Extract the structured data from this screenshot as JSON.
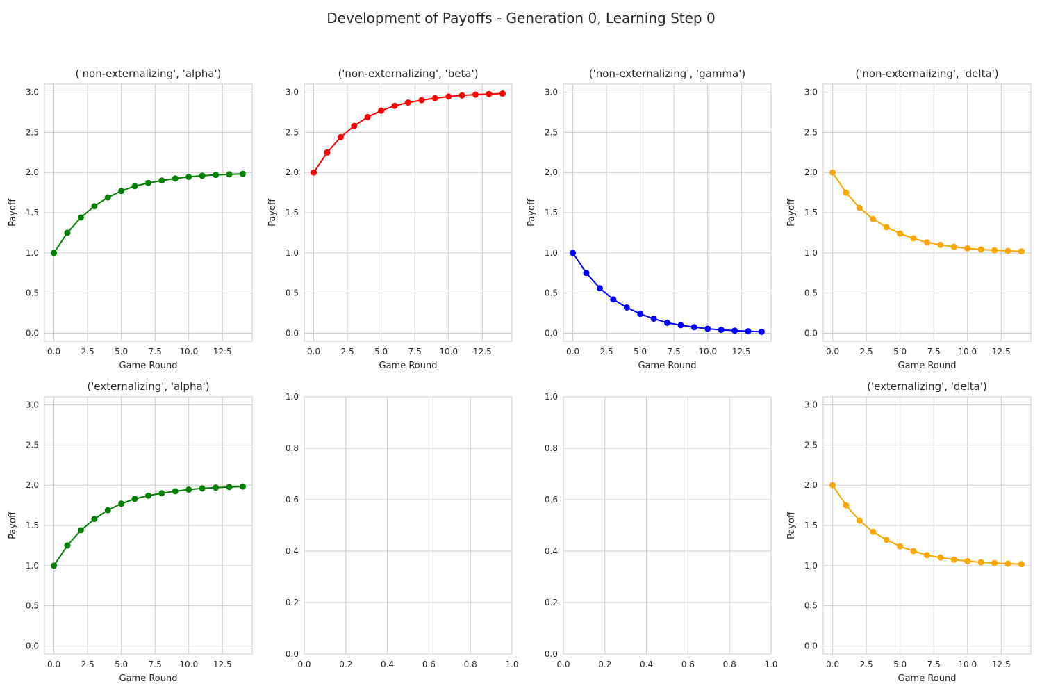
{
  "figure": {
    "title": "Development of Payoffs - Generation 0, Learning Step 0"
  },
  "chart_data": [
    {
      "type": "line",
      "title": "('non-externalizing', 'alpha')",
      "xlabel": "Game Round",
      "ylabel": "Payoff",
      "xlim": [
        -0.7,
        14.7
      ],
      "ylim": [
        -0.1,
        3.1
      ],
      "xticks": [
        "0.0",
        "2.5",
        "5.0",
        "7.5",
        "10.0",
        "12.5"
      ],
      "yticks": [
        "0.0",
        "0.5",
        "1.0",
        "1.5",
        "2.0",
        "2.5",
        "3.0"
      ],
      "grid": true,
      "color": "#008000",
      "marker": "circle",
      "x": [
        0,
        1,
        2,
        3,
        4,
        5,
        6,
        7,
        8,
        9,
        10,
        11,
        12,
        13,
        14
      ],
      "y": [
        1.0,
        1.25,
        1.44,
        1.58,
        1.69,
        1.77,
        1.83,
        1.87,
        1.9,
        1.925,
        1.945,
        1.96,
        1.97,
        1.977,
        1.983
      ]
    },
    {
      "type": "line",
      "title": "('non-externalizing', 'beta')",
      "xlabel": "Game Round",
      "ylabel": "Payoff",
      "xlim": [
        -0.7,
        14.7
      ],
      "ylim": [
        -0.1,
        3.1
      ],
      "xticks": [
        "0.0",
        "2.5",
        "5.0",
        "7.5",
        "10.0",
        "12.5"
      ],
      "yticks": [
        "0.0",
        "0.5",
        "1.0",
        "1.5",
        "2.0",
        "2.5",
        "3.0"
      ],
      "grid": true,
      "color": "#ff0000",
      "marker": "circle",
      "x": [
        0,
        1,
        2,
        3,
        4,
        5,
        6,
        7,
        8,
        9,
        10,
        11,
        12,
        13,
        14
      ],
      "y": [
        2.0,
        2.25,
        2.44,
        2.58,
        2.69,
        2.77,
        2.83,
        2.87,
        2.9,
        2.925,
        2.945,
        2.96,
        2.97,
        2.977,
        2.983
      ]
    },
    {
      "type": "line",
      "title": "('non-externalizing', 'gamma')",
      "xlabel": "Game Round",
      "ylabel": "Payoff",
      "xlim": [
        -0.7,
        14.7
      ],
      "ylim": [
        -0.1,
        3.1
      ],
      "xticks": [
        "0.0",
        "2.5",
        "5.0",
        "7.5",
        "10.0",
        "12.5"
      ],
      "yticks": [
        "0.0",
        "0.5",
        "1.0",
        "1.5",
        "2.0",
        "2.5",
        "3.0"
      ],
      "grid": true,
      "color": "#0000ff",
      "marker": "circle",
      "x": [
        0,
        1,
        2,
        3,
        4,
        5,
        6,
        7,
        8,
        9,
        10,
        11,
        12,
        13,
        14
      ],
      "y": [
        1.0,
        0.75,
        0.56,
        0.42,
        0.32,
        0.24,
        0.18,
        0.13,
        0.1,
        0.075,
        0.056,
        0.042,
        0.032,
        0.024,
        0.018
      ]
    },
    {
      "type": "line",
      "title": "('non-externalizing', 'delta')",
      "xlabel": "Game Round",
      "ylabel": "Payoff",
      "xlim": [
        -0.7,
        14.7
      ],
      "ylim": [
        -0.1,
        3.1
      ],
      "xticks": [
        "0.0",
        "2.5",
        "5.0",
        "7.5",
        "10.0",
        "12.5"
      ],
      "yticks": [
        "0.0",
        "0.5",
        "1.0",
        "1.5",
        "2.0",
        "2.5",
        "3.0"
      ],
      "grid": true,
      "color": "#ffa500",
      "marker": "circle",
      "x": [
        0,
        1,
        2,
        3,
        4,
        5,
        6,
        7,
        8,
        9,
        10,
        11,
        12,
        13,
        14
      ],
      "y": [
        2.0,
        1.75,
        1.56,
        1.42,
        1.32,
        1.24,
        1.18,
        1.13,
        1.1,
        1.075,
        1.056,
        1.042,
        1.032,
        1.024,
        1.018
      ]
    },
    {
      "type": "line",
      "title": "('externalizing', 'alpha')",
      "xlabel": "Game Round",
      "ylabel": "Payoff",
      "xlim": [
        -0.7,
        14.7
      ],
      "ylim": [
        -0.1,
        3.1
      ],
      "xticks": [
        "0.0",
        "2.5",
        "5.0",
        "7.5",
        "10.0",
        "12.5"
      ],
      "yticks": [
        "0.0",
        "0.5",
        "1.0",
        "1.5",
        "2.0",
        "2.5",
        "3.0"
      ],
      "grid": true,
      "color": "#008000",
      "marker": "circle",
      "x": [
        0,
        1,
        2,
        3,
        4,
        5,
        6,
        7,
        8,
        9,
        10,
        11,
        12,
        13,
        14
      ],
      "y": [
        1.0,
        1.25,
        1.44,
        1.58,
        1.69,
        1.77,
        1.83,
        1.87,
        1.9,
        1.925,
        1.945,
        1.96,
        1.97,
        1.977,
        1.983
      ]
    },
    {
      "type": "line",
      "title": "",
      "xlabel": "",
      "ylabel": "",
      "xlim": [
        0,
        1
      ],
      "ylim": [
        0,
        1
      ],
      "xticks": [
        "0.0",
        "0.2",
        "0.4",
        "0.6",
        "0.8",
        "1.0"
      ],
      "yticks": [
        "0.0",
        "0.2",
        "0.4",
        "0.6",
        "0.8",
        "1.0"
      ],
      "grid": true,
      "color": "",
      "marker": "",
      "x": [],
      "y": []
    },
    {
      "type": "line",
      "title": "",
      "xlabel": "",
      "ylabel": "",
      "xlim": [
        0,
        1
      ],
      "ylim": [
        0,
        1
      ],
      "xticks": [
        "0.0",
        "0.2",
        "0.4",
        "0.6",
        "0.8",
        "1.0"
      ],
      "yticks": [
        "0.0",
        "0.2",
        "0.4",
        "0.6",
        "0.8",
        "1.0"
      ],
      "grid": true,
      "color": "",
      "marker": "",
      "x": [],
      "y": []
    },
    {
      "type": "line",
      "title": "('externalizing', 'delta')",
      "xlabel": "Game Round",
      "ylabel": "Payoff",
      "xlim": [
        -0.7,
        14.7
      ],
      "ylim": [
        -0.1,
        3.1
      ],
      "xticks": [
        "0.0",
        "2.5",
        "5.0",
        "7.5",
        "10.0",
        "12.5"
      ],
      "yticks": [
        "0.0",
        "0.5",
        "1.0",
        "1.5",
        "2.0",
        "2.5",
        "3.0"
      ],
      "grid": true,
      "color": "#ffa500",
      "marker": "circle",
      "x": [
        0,
        1,
        2,
        3,
        4,
        5,
        6,
        7,
        8,
        9,
        10,
        11,
        12,
        13,
        14
      ],
      "y": [
        2.0,
        1.75,
        1.56,
        1.42,
        1.32,
        1.24,
        1.18,
        1.13,
        1.1,
        1.075,
        1.056,
        1.042,
        1.032,
        1.024,
        1.018
      ]
    }
  ]
}
